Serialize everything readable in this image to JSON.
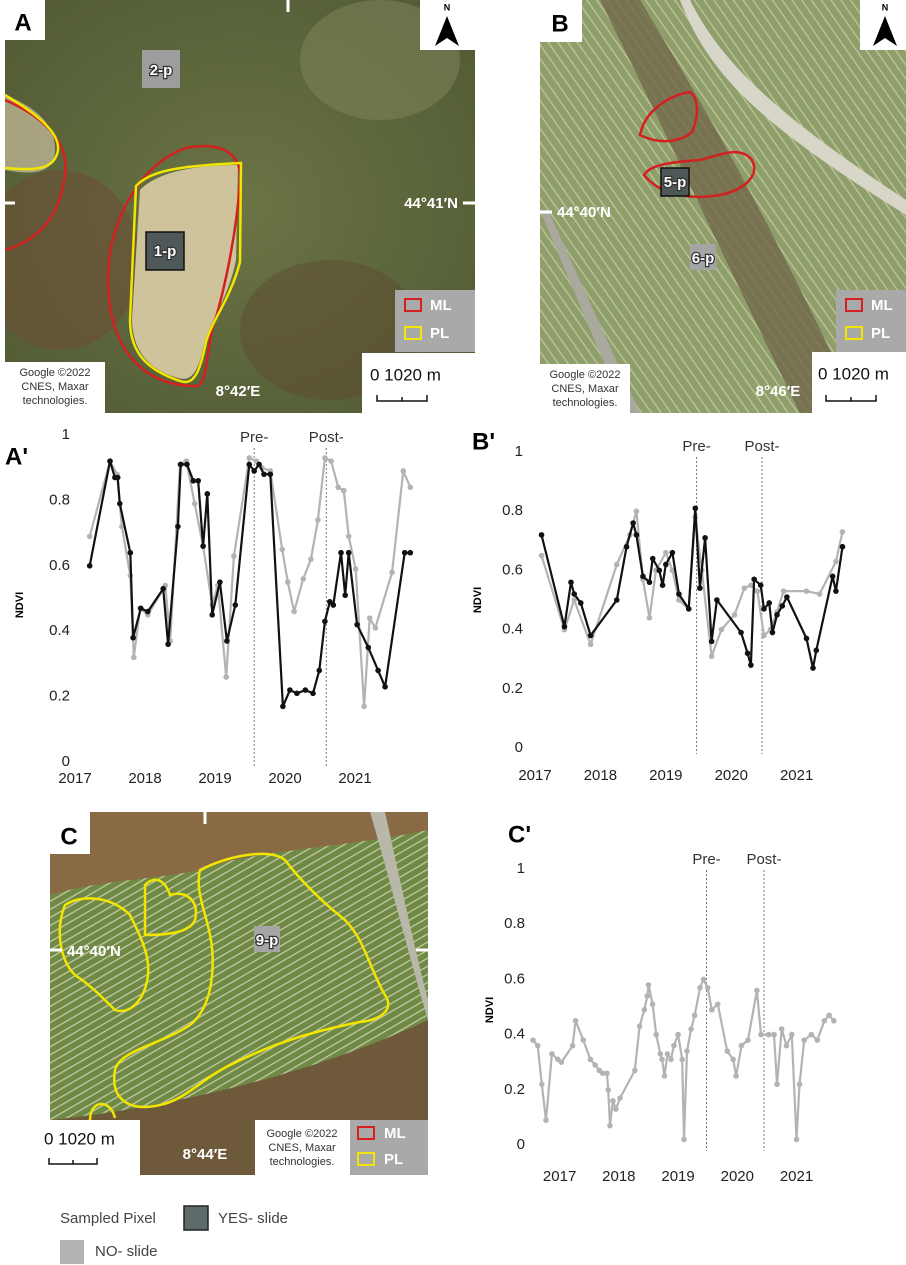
{
  "maps": [
    {
      "label": "A",
      "north": "N",
      "lat": "44°41′N",
      "lon": "8°42′E",
      "pixels": [
        "2-p",
        "1-p"
      ],
      "legend": [
        "ML",
        "PL"
      ],
      "scale": "0 1020 m",
      "attribution": [
        "Google ©2022",
        "CNES, Maxar",
        "technologies."
      ]
    },
    {
      "label": "B",
      "north": "N",
      "lat": "44°40′N",
      "lon": "8°46′E",
      "pixels": [
        "5-p",
        "6-p"
      ],
      "legend": [
        "ML",
        "PL"
      ],
      "scale": "0 1020 m",
      "attribution": [
        "Google ©2022",
        "CNES, Maxar",
        "technologies."
      ]
    },
    {
      "label": "C",
      "lat": "44°40′N",
      "lon": "8°44′E",
      "pixels": [
        "9-p"
      ],
      "legend": [
        "ML",
        "PL"
      ],
      "scale": "0 1020 m",
      "attribution": [
        "Google ©2022",
        "CNES, Maxar",
        "technologies."
      ]
    }
  ],
  "chart_data": [
    {
      "type": "line",
      "label": "A'",
      "ylabel": "NDVI",
      "xlim": [
        2017,
        2021.8
      ],
      "xticks": [
        2017,
        2018,
        2019,
        2020,
        2021
      ],
      "ylim": [
        0,
        1
      ],
      "yticks": [
        0,
        0.2,
        0.4,
        0.6,
        0.8,
        1
      ],
      "annotations": [
        {
          "text": "Pre-",
          "x": 2019.56
        },
        {
          "text": "Post-",
          "x": 2020.59
        }
      ],
      "series": [
        {
          "color": "#b3b3b3",
          "x": [
            2017.21,
            2017.5,
            2017.6,
            2017.67,
            2017.79,
            2017.84,
            2017.93,
            2018.04,
            2018.29,
            2018.36,
            2018.5,
            2018.59,
            2018.71,
            2018.83,
            2018.96,
            2019.04,
            2019.16,
            2019.27,
            2019.49,
            2019.59,
            2019.67,
            2019.79,
            2019.96,
            2020.04,
            2020.13,
            2020.26,
            2020.37,
            2020.47,
            2020.57,
            2020.66,
            2020.76,
            2020.84,
            2020.91,
            2021.01,
            2021.13,
            2021.21,
            2021.29,
            2021.53,
            2021.69,
            2021.79
          ],
          "values": [
            0.69,
            0.92,
            0.88,
            0.72,
            0.57,
            0.32,
            0.47,
            0.45,
            0.54,
            0.37,
            0.91,
            0.92,
            0.79,
            0.66,
            0.48,
            0.54,
            0.26,
            0.63,
            0.93,
            0.92,
            0.9,
            0.89,
            0.65,
            0.55,
            0.46,
            0.56,
            0.62,
            0.74,
            0.93,
            0.92,
            0.84,
            0.83,
            0.69,
            0.59,
            0.17,
            0.44,
            0.41,
            0.58,
            0.89,
            0.84
          ]
        },
        {
          "color": "#111111",
          "x": [
            2017.21,
            2017.5,
            2017.57,
            2017.61,
            2017.64,
            2017.79,
            2017.83,
            2017.94,
            2018.04,
            2018.26,
            2018.33,
            2018.47,
            2018.51,
            2018.6,
            2018.69,
            2018.76,
            2018.83,
            2018.89,
            2018.96,
            2019.07,
            2019.17,
            2019.29,
            2019.49,
            2019.56,
            2019.63,
            2019.7,
            2019.79,
            2019.97,
            2020.07,
            2020.17,
            2020.29,
            2020.4,
            2020.49,
            2020.57,
            2020.64,
            2020.69,
            2020.8,
            2020.86,
            2020.91,
            2021.03,
            2021.19,
            2021.33,
            2021.43,
            2021.71,
            2021.79
          ],
          "values": [
            0.6,
            0.92,
            0.87,
            0.87,
            0.79,
            0.64,
            0.38,
            0.47,
            0.46,
            0.53,
            0.36,
            0.72,
            0.91,
            0.91,
            0.86,
            0.86,
            0.66,
            0.82,
            0.45,
            0.55,
            0.37,
            0.48,
            0.91,
            0.89,
            0.91,
            0.88,
            0.88,
            0.17,
            0.22,
            0.21,
            0.22,
            0.21,
            0.28,
            0.43,
            0.49,
            0.48,
            0.64,
            0.51,
            0.64,
            0.42,
            0.35,
            0.28,
            0.23,
            0.64,
            0.64
          ]
        }
      ]
    },
    {
      "type": "line",
      "label": "B'",
      "ylabel": "NDVI",
      "xlim": [
        2017,
        2021.8
      ],
      "xticks": [
        2017,
        2018,
        2019,
        2020,
        2021
      ],
      "ylim": [
        0,
        1
      ],
      "yticks": [
        0,
        0.2,
        0.4,
        0.6,
        0.8,
        1
      ],
      "annotations": [
        {
          "text": "Pre-",
          "x": 2019.47
        },
        {
          "text": "Post-",
          "x": 2020.47
        }
      ],
      "series": [
        {
          "color": "#b3b3b3",
          "x": [
            2017.1,
            2017.45,
            2017.6,
            2017.85,
            2018.25,
            2018.45,
            2018.55,
            2018.65,
            2018.75,
            2018.85,
            2019.0,
            2019.1,
            2019.2,
            2019.35,
            2019.45,
            2019.55,
            2019.7,
            2019.85,
            2020.05,
            2020.2,
            2020.3,
            2020.4,
            2020.5,
            2020.6,
            2020.7,
            2020.8,
            2021.15,
            2021.35,
            2021.6,
            2021.7
          ],
          "values": [
            0.65,
            0.4,
            0.5,
            0.35,
            0.62,
            0.72,
            0.8,
            0.57,
            0.44,
            0.6,
            0.66,
            0.6,
            0.5,
            0.47,
            0.78,
            0.6,
            0.31,
            0.4,
            0.45,
            0.54,
            0.55,
            0.53,
            0.38,
            0.4,
            0.46,
            0.53,
            0.53,
            0.52,
            0.63,
            0.73
          ]
        },
        {
          "color": "#111111",
          "x": [
            2017.1,
            2017.45,
            2017.55,
            2017.6,
            2017.7,
            2017.85,
            2018.25,
            2018.4,
            2018.5,
            2018.55,
            2018.65,
            2018.75,
            2018.8,
            2018.9,
            2018.95,
            2019.0,
            2019.1,
            2019.2,
            2019.35,
            2019.45,
            2019.52,
            2019.6,
            2019.7,
            2019.78,
            2020.15,
            2020.25,
            2020.3,
            2020.35,
            2020.45,
            2020.5,
            2020.58,
            2020.63,
            2020.7,
            2020.78,
            2020.85,
            2021.15,
            2021.25,
            2021.3,
            2021.55,
            2021.6,
            2021.7
          ],
          "values": [
            0.72,
            0.41,
            0.56,
            0.52,
            0.49,
            0.38,
            0.5,
            0.68,
            0.76,
            0.72,
            0.58,
            0.56,
            0.64,
            0.6,
            0.55,
            0.62,
            0.66,
            0.52,
            0.47,
            0.81,
            0.54,
            0.71,
            0.36,
            0.5,
            0.39,
            0.32,
            0.28,
            0.57,
            0.55,
            0.47,
            0.49,
            0.39,
            0.45,
            0.48,
            0.51,
            0.37,
            0.27,
            0.33,
            0.58,
            0.53,
            0.68
          ]
        }
      ]
    },
    {
      "type": "line",
      "label": "C'",
      "ylabel": "NDVI",
      "xlim": [
        2016.5,
        2021.7
      ],
      "xticks": [
        2017,
        2018,
        2019,
        2020,
        2021
      ],
      "ylim": [
        0,
        1
      ],
      "yticks": [
        0,
        0.2,
        0.4,
        0.6,
        0.8,
        1
      ],
      "annotations": [
        {
          "text": "Pre-",
          "x": 2019.48
        },
        {
          "text": "Post-",
          "x": 2020.45
        }
      ],
      "series": [
        {
          "color": "#b3b3b3",
          "x": [
            2016.55,
            2016.63,
            2016.7,
            2016.77,
            2016.87,
            2016.97,
            2017.03,
            2017.22,
            2017.27,
            2017.4,
            2017.52,
            2017.6,
            2017.67,
            2017.73,
            2017.8,
            2017.82,
            2017.85,
            2017.9,
            2017.95,
            2018.02,
            2018.27,
            2018.35,
            2018.43,
            2018.48,
            2018.5,
            2018.57,
            2018.63,
            2018.7,
            2018.73,
            2018.77,
            2018.82,
            2018.88,
            2018.93,
            2019,
            2019.07,
            2019.1,
            2019.15,
            2019.22,
            2019.28,
            2019.37,
            2019.43,
            2019.5,
            2019.57,
            2019.67,
            2019.83,
            2019.93,
            2019.98,
            2020.07,
            2020.18,
            2020.33,
            2020.4,
            2020.53,
            2020.62,
            2020.67,
            2020.75,
            2020.83,
            2020.92,
            2021,
            2021.05,
            2021.13,
            2021.25,
            2021.35,
            2021.47,
            2021.55,
            2021.63
          ],
          "values": [
            0.38,
            0.36,
            0.22,
            0.09,
            0.33,
            0.31,
            0.3,
            0.36,
            0.45,
            0.38,
            0.31,
            0.29,
            0.27,
            0.26,
            0.26,
            0.2,
            0.07,
            0.16,
            0.13,
            0.17,
            0.27,
            0.43,
            0.49,
            0.54,
            0.58,
            0.51,
            0.4,
            0.33,
            0.31,
            0.25,
            0.33,
            0.31,
            0.36,
            0.4,
            0.31,
            0.02,
            0.34,
            0.42,
            0.47,
            0.57,
            0.6,
            0.57,
            0.49,
            0.51,
            0.34,
            0.31,
            0.25,
            0.36,
            0.38,
            0.56,
            0.4,
            0.4,
            0.4,
            0.22,
            0.42,
            0.36,
            0.4,
            0.02,
            0.22,
            0.38,
            0.4,
            0.38,
            0.45,
            0.47,
            0.45
          ]
        }
      ]
    }
  ],
  "legend": {
    "title": "Sampled Pixel",
    "items": [
      "YES- slide",
      "NO- slide"
    ]
  }
}
